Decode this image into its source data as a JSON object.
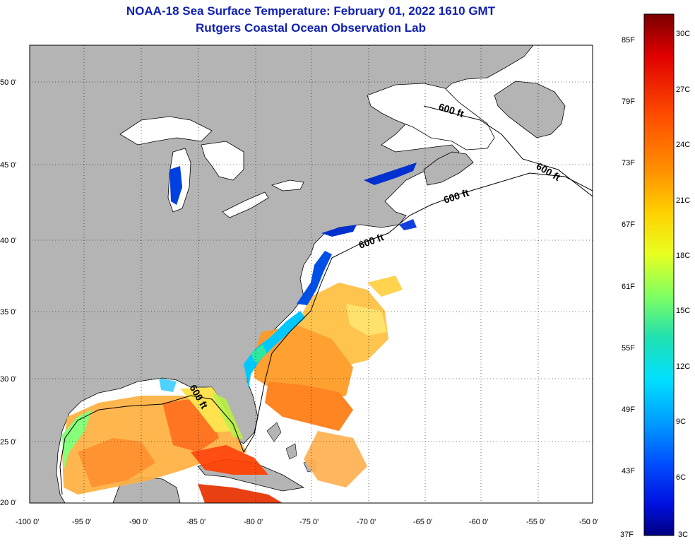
{
  "header": {
    "title": "NOAA-18 Sea Surface Temperature:  February 01, 2022 1610 GMT",
    "subtitle": "Rutgers Coastal Ocean Observation Lab"
  },
  "axes": {
    "lat_ticks": [
      "50 0'",
      "45 0'",
      "40 0'",
      "35 0'",
      "30 0'",
      "25 0'",
      "20 0'"
    ],
    "lon_ticks": [
      "-100 0'",
      "-95 0'",
      "-90 0'",
      "-85 0'",
      "-80 0'",
      "-75 0'",
      "-70 0'",
      "-65 0'",
      "-60 0'",
      "-55 0'",
      "-50 0'"
    ]
  },
  "depth_contour_labels": [
    "600 ft",
    "600 ft",
    "600 ft",
    "600 ft",
    "600 ft"
  ],
  "colorbar": {
    "fahrenheit_labels": [
      "85F",
      "79F",
      "73F",
      "67F",
      "61F",
      "55F",
      "49F",
      "43F",
      "37F"
    ],
    "celsius_labels": [
      "30C",
      "27C",
      "24C",
      "21C",
      "18C",
      "15C",
      "12C",
      "9C",
      "6C",
      "3C"
    ],
    "colors_top_to_bottom": [
      "#7a0000",
      "#e00000",
      "#ff5000",
      "#ff9000",
      "#ffd000",
      "#e8ff20",
      "#80ff60",
      "#20e0b0",
      "#00e0ff",
      "#00a0ff",
      "#0050ff",
      "#0010e0",
      "#000080"
    ]
  },
  "colors": {
    "land": "#b4b4b4",
    "ocean_no_data": "#ffffff",
    "title": "#1020b0"
  }
}
